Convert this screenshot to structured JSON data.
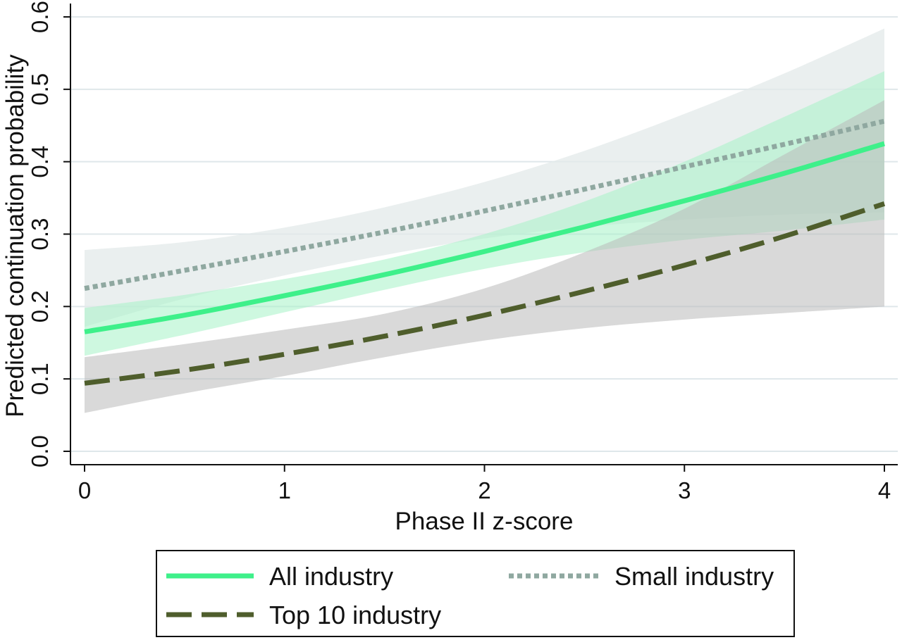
{
  "chart_data": {
    "type": "line",
    "xlabel": "Phase II z-score",
    "ylabel": "Predicted continuation probability",
    "xlim": [
      0,
      4
    ],
    "ylim": [
      0,
      0.6
    ],
    "xticks": [
      0,
      1,
      2,
      3,
      4
    ],
    "xtick_labels": [
      "0",
      "1",
      "2",
      "3",
      "4"
    ],
    "yticks": [
      0,
      0.1,
      0.2,
      0.3,
      0.4,
      0.5,
      0.6
    ],
    "ytick_labels": [
      "0.0",
      "0.1",
      "0.2",
      "0.3",
      "0.4",
      "0.5",
      "0.6"
    ],
    "grid": true,
    "legend_position": "bottom",
    "x": [
      0,
      0.5,
      1,
      1.5,
      2,
      2.5,
      3,
      3.5,
      4
    ],
    "series": [
      {
        "name": "All industry",
        "color": "#3ef08a",
        "band_color": "#a5f2c6",
        "style": "solid",
        "values": [
          0.165,
          0.188,
          0.215,
          0.244,
          0.276,
          0.31,
          0.346,
          0.384,
          0.425
        ],
        "lower": [
          0.132,
          0.161,
          0.192,
          0.223,
          0.252,
          0.275,
          0.292,
          0.305,
          0.32
        ],
        "upper": [
          0.198,
          0.216,
          0.238,
          0.265,
          0.3,
          0.345,
          0.4,
          0.462,
          0.525
        ]
      },
      {
        "name": "Small industry",
        "color": "#8fa8a0",
        "band_color": "#e3e9e9",
        "style": "dotted",
        "values": [
          0.225,
          0.25,
          0.276,
          0.303,
          0.332,
          0.362,
          0.393,
          0.424,
          0.456
        ],
        "lower": [
          0.172,
          0.211,
          0.243,
          0.271,
          0.294,
          0.31,
          0.32,
          0.327,
          0.33
        ],
        "upper": [
          0.278,
          0.289,
          0.309,
          0.337,
          0.372,
          0.415,
          0.466,
          0.522,
          0.584
        ]
      },
      {
        "name": "Top 10 industry",
        "color": "#4f5e2c",
        "band_color": "#b9b9b9",
        "style": "dashed",
        "values": [
          0.094,
          0.112,
          0.134,
          0.159,
          0.188,
          0.221,
          0.257,
          0.297,
          0.342
        ],
        "lower": [
          0.053,
          0.08,
          0.104,
          0.13,
          0.153,
          0.17,
          0.182,
          0.191,
          0.2
        ],
        "upper": [
          0.13,
          0.148,
          0.168,
          0.19,
          0.225,
          0.275,
          0.335,
          0.41,
          0.485
        ]
      }
    ]
  }
}
